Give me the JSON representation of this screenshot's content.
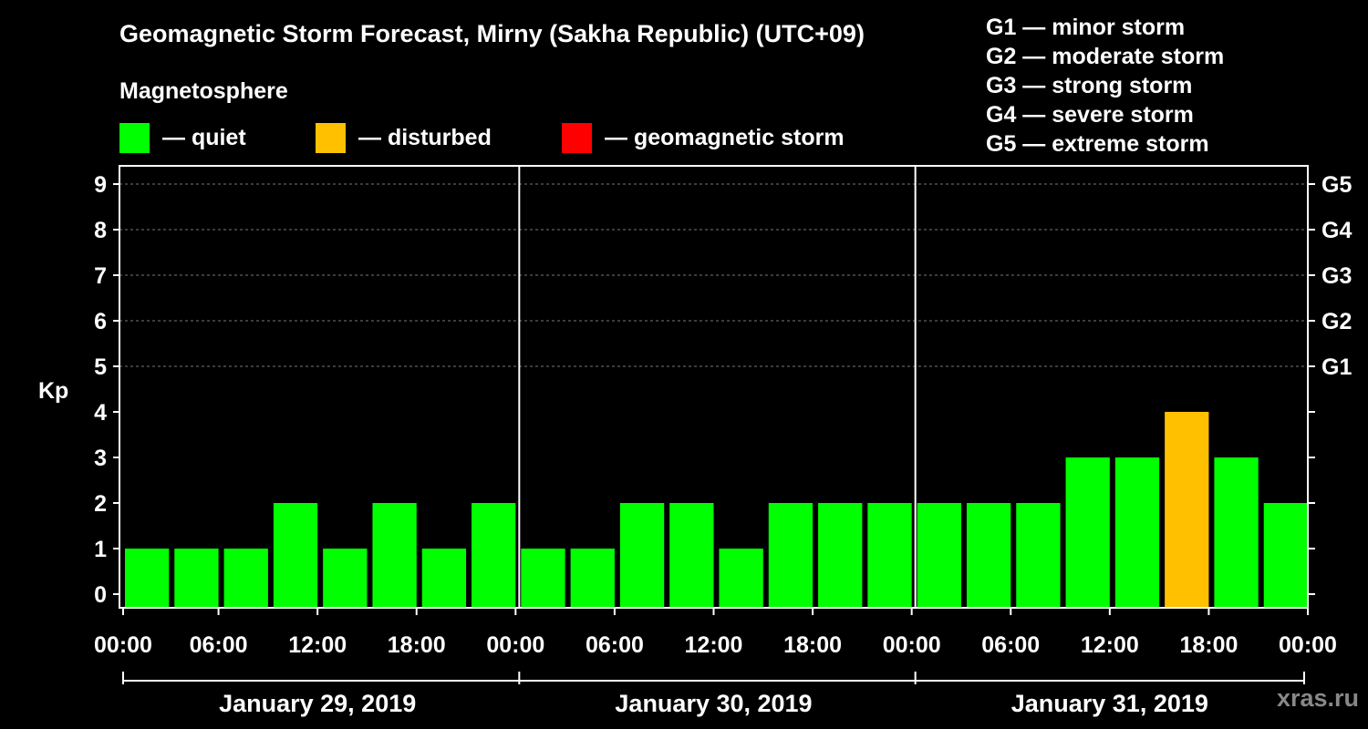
{
  "title": "Geomagnetic Storm Forecast, Mirny (Sakha Republic) (UTC+09)",
  "magnetosphere": {
    "title": "Magnetosphere",
    "items": [
      {
        "label": "— quiet",
        "color": "#00ff00"
      },
      {
        "label": "— disturbed",
        "color": "#ffc000"
      },
      {
        "label": "— geomagnetic storm",
        "color": "#ff0000"
      }
    ]
  },
  "storm_levels": [
    "G1 — minor storm",
    "G2 — moderate storm",
    "G3 — strong storm",
    "G4 — severe storm",
    "G5 — extreme storm"
  ],
  "watermark": "xras.ru",
  "chart_data": {
    "type": "bar",
    "title": "Geomagnetic Storm Forecast, Mirny (Sakha Republic) (UTC+09)",
    "ylabel": "Kp",
    "ylim": [
      0,
      9
    ],
    "yticks": [
      "0",
      "1",
      "2",
      "3",
      "4",
      "5",
      "6",
      "7",
      "8",
      "9"
    ],
    "right_ticks": [
      {
        "kp": 5,
        "label": "G1"
      },
      {
        "kp": 6,
        "label": "G2"
      },
      {
        "kp": 7,
        "label": "G3"
      },
      {
        "kp": 8,
        "label": "G4"
      },
      {
        "kp": 9,
        "label": "G5"
      }
    ],
    "xtick_labels": [
      "00:00",
      "06:00",
      "12:00",
      "18:00",
      "00:00",
      "06:00",
      "12:00",
      "18:00",
      "00:00",
      "06:00",
      "12:00",
      "18:00",
      "00:00"
    ],
    "days": [
      "January 29, 2019",
      "January 30, 2019",
      "January 31, 2019"
    ],
    "interval_hours": 3,
    "values": [
      1,
      1,
      1,
      2,
      1,
      2,
      1,
      2,
      1,
      1,
      2,
      2,
      1,
      2,
      2,
      2,
      2,
      2,
      2,
      3,
      3,
      4,
      3,
      2
    ],
    "colors": {
      "quiet": "#00ff00",
      "disturbed": "#ffc000",
      "storm": "#ff0000"
    },
    "grid": true
  }
}
